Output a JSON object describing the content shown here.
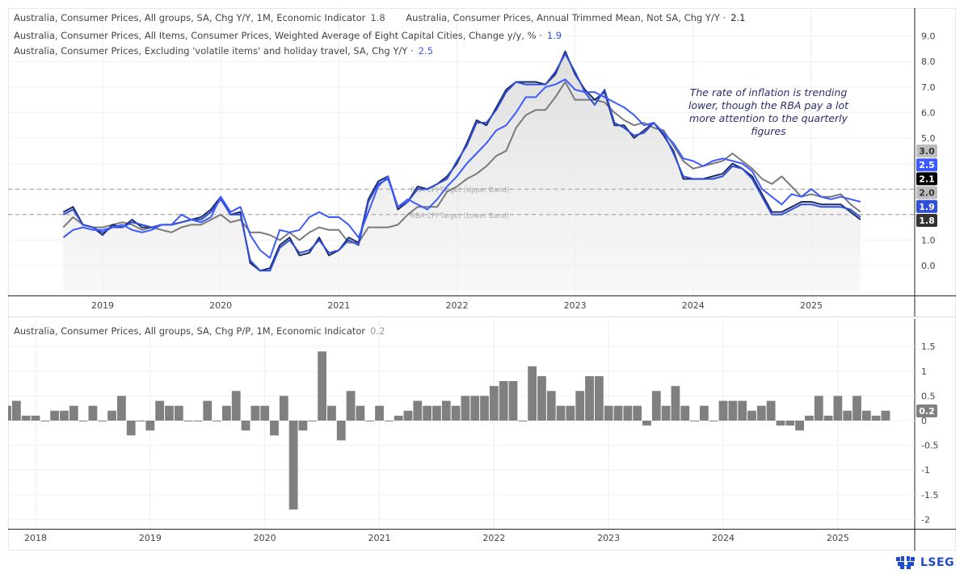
{
  "chart_data": [
    {
      "type": "line",
      "pane": "top",
      "legend": [
        {
          "label": "Australia, Consumer Prices, All groups, SA, Chg Y/Y, 1M, Economic Indicator",
          "value": "1.8"
        },
        {
          "label": "Australia, Consumer Prices, Annual Trimmed Mean, Not SA, Chg Y/Y ·",
          "value": "2.1"
        },
        {
          "label": "Australia, Consumer Prices, All Items, Consumer Prices, Weighted Average of Eight Capital Cities, Change y/y, % ·",
          "value": "1.9"
        },
        {
          "label": "Australia, Consumer Prices, Excluding 'volatile items' and holiday travel, SA, Chg Y/Y ·",
          "value": "2.5"
        }
      ],
      "x": [
        "2018-09",
        "2018-10",
        "2018-11",
        "2018-12",
        "2019-01",
        "2019-02",
        "2019-03",
        "2019-04",
        "2019-05",
        "2019-06",
        "2019-07",
        "2019-08",
        "2019-09",
        "2019-10",
        "2019-11",
        "2019-12",
        "2020-01",
        "2020-02",
        "2020-03",
        "2020-04",
        "2020-05",
        "2020-06",
        "2020-07",
        "2020-08",
        "2020-09",
        "2020-10",
        "2020-11",
        "2020-12",
        "2021-01",
        "2021-02",
        "2021-03",
        "2021-04",
        "2021-05",
        "2021-06",
        "2021-07",
        "2021-08",
        "2021-09",
        "2021-10",
        "2021-11",
        "2021-12",
        "2022-01",
        "2022-02",
        "2022-03",
        "2022-04",
        "2022-05",
        "2022-06",
        "2022-07",
        "2022-08",
        "2022-09",
        "2022-10",
        "2022-11",
        "2022-12",
        "2023-01",
        "2023-02",
        "2023-03",
        "2023-04",
        "2023-05",
        "2023-06",
        "2023-07",
        "2023-08",
        "2023-09",
        "2023-10",
        "2023-11",
        "2023-12",
        "2024-01",
        "2024-02",
        "2024-03",
        "2024-04",
        "2024-05",
        "2024-06",
        "2024-07",
        "2024-08",
        "2024-09",
        "2024-10",
        "2024-11",
        "2024-12",
        "2025-01",
        "2025-02",
        "2025-03",
        "2025-04",
        "2025-05",
        "2025-06"
      ],
      "series": [
        {
          "name": "Australia, Consumer Prices, All groups, SA, Chg Y/Y, 1M, Economic Indicator",
          "color": "#1d2d66",
          "fill": true,
          "values": [
            2.1,
            2.3,
            1.6,
            1.5,
            1.2,
            1.6,
            1.5,
            1.8,
            1.5,
            1.5,
            1.6,
            1.6,
            1.7,
            1.8,
            1.9,
            2.2,
            2.7,
            2.0,
            2.1,
            0.1,
            -0.2,
            -0.1,
            0.8,
            1.1,
            0.4,
            0.5,
            1.1,
            0.4,
            0.6,
            1.1,
            0.9,
            2.6,
            3.3,
            3.5,
            2.2,
            2.5,
            3.1,
            3.0,
            3.2,
            3.5,
            4.0,
            4.8,
            5.7,
            5.5,
            6.2,
            6.9,
            7.2,
            7.2,
            7.2,
            7.1,
            7.5,
            8.4,
            7.5,
            6.9,
            6.5,
            6.8,
            5.5,
            5.5,
            5.0,
            5.3,
            5.6,
            5.1,
            4.5,
            3.4,
            3.4,
            3.4,
            3.5,
            3.6,
            4.0,
            3.8,
            3.5,
            2.8,
            2.1,
            2.1,
            2.3,
            2.5,
            2.5,
            2.4,
            2.4,
            2.4,
            2.1,
            1.8
          ]
        },
        {
          "name": "Australia, Consumer Prices, Annual Trimmed Mean, Not SA, Chg Y/Y",
          "color": "#7a7a7a",
          "values": [
            1.5,
            1.9,
            1.6,
            1.5,
            1.5,
            1.6,
            1.7,
            1.6,
            1.4,
            1.5,
            1.4,
            1.3,
            1.5,
            1.6,
            1.6,
            1.8,
            2.0,
            1.7,
            1.8,
            1.3,
            1.3,
            1.2,
            1.0,
            1.3,
            1.0,
            1.3,
            1.5,
            1.4,
            1.4,
            0.9,
            0.9,
            1.5,
            1.5,
            1.5,
            1.6,
            2.0,
            2.3,
            2.3,
            2.3,
            2.9,
            3.1,
            3.4,
            3.6,
            3.9,
            4.3,
            4.5,
            5.4,
            5.9,
            6.1,
            6.1,
            6.6,
            7.2,
            6.5,
            6.5,
            6.5,
            6.4,
            6.0,
            5.7,
            5.5,
            5.6,
            5.4,
            5.3,
            4.7,
            4.1,
            3.8,
            3.9,
            4.0,
            4.1,
            4.4,
            4.1,
            3.8,
            3.4,
            3.2,
            3.5,
            3.1,
            2.7,
            2.8,
            2.7,
            2.7,
            2.8,
            2.4,
            2.1
          ]
        },
        {
          "name": "Australia, Consumer Prices, All Items, Consumer Prices, Weighted Average of Eight Capital Cities, Change y/y, %",
          "color": "#2f4fd6",
          "values": [
            2.0,
            2.2,
            1.6,
            1.5,
            1.3,
            1.5,
            1.5,
            1.7,
            1.6,
            1.5,
            1.6,
            1.6,
            1.7,
            1.8,
            1.8,
            2.1,
            2.6,
            2.0,
            2.0,
            0.2,
            -0.2,
            -0.2,
            0.7,
            1.0,
            0.5,
            0.6,
            1.0,
            0.5,
            0.6,
            1.0,
            0.8,
            2.5,
            3.2,
            3.4,
            2.3,
            2.5,
            3.0,
            3.0,
            3.2,
            3.4,
            4.1,
            4.7,
            5.6,
            5.6,
            6.1,
            6.8,
            7.2,
            7.1,
            7.1,
            7.1,
            7.6,
            8.3,
            7.6,
            6.8,
            6.3,
            6.9,
            5.6,
            5.4,
            5.1,
            5.2,
            5.6,
            5.2,
            4.4,
            3.5,
            3.4,
            3.4,
            3.4,
            3.5,
            3.9,
            3.8,
            3.4,
            2.7,
            2.0,
            2.0,
            2.2,
            2.4,
            2.4,
            2.3,
            2.3,
            2.3,
            2.2,
            1.9
          ]
        },
        {
          "name": "Australia, Consumer Prices, Excluding 'volatile items' and holiday travel, SA, Chg Y/Y",
          "color": "#3d5afe",
          "values": [
            1.1,
            1.4,
            1.5,
            1.4,
            1.4,
            1.5,
            1.6,
            1.4,
            1.3,
            1.4,
            1.6,
            1.6,
            2.0,
            1.8,
            1.7,
            1.9,
            2.7,
            2.1,
            2.3,
            1.2,
            0.6,
            0.3,
            1.4,
            1.3,
            1.4,
            1.9,
            2.1,
            1.9,
            1.9,
            1.6,
            1.1,
            2.1,
            3.1,
            3.5,
            2.3,
            2.6,
            2.4,
            2.2,
            2.6,
            3.1,
            3.5,
            4.0,
            4.4,
            4.8,
            5.3,
            5.5,
            6.0,
            6.6,
            6.6,
            7.0,
            7.1,
            7.3,
            6.9,
            6.8,
            6.8,
            6.6,
            6.4,
            6.2,
            5.9,
            5.5,
            5.6,
            5.2,
            4.8,
            4.2,
            4.1,
            3.9,
            4.1,
            4.2,
            4.1,
            4.0,
            3.7,
            3.0,
            2.7,
            2.4,
            2.8,
            2.7,
            3.0,
            2.7,
            2.6,
            2.7,
            2.6,
            2.5
          ]
        }
      ],
      "reference_lines": [
        {
          "label": "RBA CPI Target (Upper Band)",
          "value": 3.0
        },
        {
          "label": "RBA CPI Target (Lower Band)",
          "value": 2.0
        }
      ],
      "last_value_labels": [
        {
          "text": "3.0",
          "bg": "#bdbdbd",
          "fg": "#333333"
        },
        {
          "text": "2.5",
          "bg": "#3d5afe",
          "fg": "#ffffff"
        },
        {
          "text": "2.1",
          "bg": "#000000",
          "fg": "#ffffff"
        },
        {
          "text": "2.0",
          "bg": "#bdbdbd",
          "fg": "#333333"
        },
        {
          "text": "1.9",
          "bg": "#2f4fd6",
          "fg": "#ffffff"
        },
        {
          "text": "1.8",
          "bg": "#333333",
          "fg": "#ffffff"
        }
      ],
      "y_ticks": [
        "9.0",
        "8.0",
        "7.0",
        "6.0",
        "5.0",
        "1.0",
        "0.0"
      ],
      "x_ticks": [
        "2019",
        "2020",
        "2021",
        "2022",
        "2023",
        "2024",
        "2025"
      ],
      "ylim": [
        -1,
        10
      ],
      "annotation": "The rate of inflation is trending lower, though the RBA pay a lot more attention to the quarterly figures",
      "grid": true
    },
    {
      "type": "bar",
      "pane": "bottom",
      "legend": [
        {
          "label": "Australia, Consumer Prices, All groups, SA, Chg P/P, 1M, Economic Indicator",
          "value": "0.2"
        }
      ],
      "color": "#808080",
      "x": [
        "2017-10",
        "2017-11",
        "2017-12",
        "2018-01",
        "2018-02",
        "2018-03",
        "2018-04",
        "2018-05",
        "2018-06",
        "2018-07",
        "2018-08",
        "2018-09",
        "2018-10",
        "2018-11",
        "2018-12",
        "2019-01",
        "2019-02",
        "2019-03",
        "2019-04",
        "2019-05",
        "2019-06",
        "2019-07",
        "2019-08",
        "2019-09",
        "2019-10",
        "2019-11",
        "2019-12",
        "2020-01",
        "2020-02",
        "2020-03",
        "2020-04",
        "2020-05",
        "2020-06",
        "2020-07",
        "2020-08",
        "2020-09",
        "2020-10",
        "2020-11",
        "2020-12",
        "2021-01",
        "2021-02",
        "2021-03",
        "2021-04",
        "2021-05",
        "2021-06",
        "2021-07",
        "2021-08",
        "2021-09",
        "2021-10",
        "2021-11",
        "2021-12",
        "2022-01",
        "2022-02",
        "2022-03",
        "2022-04",
        "2022-05",
        "2022-06",
        "2022-07",
        "2022-08",
        "2022-09",
        "2022-10",
        "2022-11",
        "2022-12",
        "2023-01",
        "2023-02",
        "2023-03",
        "2023-04",
        "2023-05",
        "2023-06",
        "2023-07",
        "2023-08",
        "2023-09",
        "2023-10",
        "2023-11",
        "2023-12",
        "2024-01",
        "2024-02",
        "2024-03",
        "2024-04",
        "2024-05",
        "2024-06",
        "2024-07",
        "2024-08",
        "2024-09",
        "2024-10",
        "2024-11",
        "2024-12",
        "2025-01",
        "2025-02",
        "2025-03",
        "2025-04",
        "2025-05",
        "2025-06"
      ],
      "values": [
        0.3,
        0.4,
        0.1,
        0.1,
        0,
        0.2,
        0.2,
        0.3,
        0,
        0.3,
        0,
        0.2,
        0.5,
        -0.3,
        0,
        -0.2,
        0.4,
        0.3,
        0.3,
        0,
        0,
        0.4,
        0,
        0.3,
        0.6,
        -0.2,
        0.3,
        0.3,
        -0.3,
        0.5,
        -1.8,
        -0.2,
        0,
        1.4,
        0.3,
        -0.4,
        0.6,
        0.3,
        0,
        0.3,
        0,
        0.1,
        0.2,
        0.4,
        0.3,
        0.3,
        0.4,
        0.3,
        0.5,
        0.5,
        0.5,
        0.7,
        0.8,
        0.8,
        0,
        1.1,
        0.9,
        0.6,
        0.3,
        0.3,
        0.6,
        0.9,
        0.9,
        0.3,
        0.3,
        0.3,
        0.3,
        -0.1,
        0.6,
        0.3,
        0.7,
        0.3,
        0,
        0.3,
        0,
        0.4,
        0.4,
        0.4,
        0.2,
        0.3,
        0.4,
        -0.1,
        -0.1,
        -0.2,
        0.1,
        0.5,
        0.1,
        0.5,
        0.2,
        0.5,
        0.2,
        0.1,
        0.2
      ],
      "last_value_label": {
        "text": "0.2",
        "bg": "#808080",
        "fg": "#ffffff"
      },
      "y_ticks": [
        "1.5",
        "1",
        "0.5",
        "0",
        "-0.5",
        "-1",
        "-1.5",
        "-2"
      ],
      "x_ticks": [
        "2018",
        "2019",
        "2020",
        "2021",
        "2022",
        "2023",
        "2024",
        "2025"
      ],
      "ylim": [
        -2.2,
        1.9
      ],
      "grid": true
    }
  ],
  "branding": {
    "logo_text": "LSEG",
    "logo_icon": "lseg-lion-icon"
  }
}
